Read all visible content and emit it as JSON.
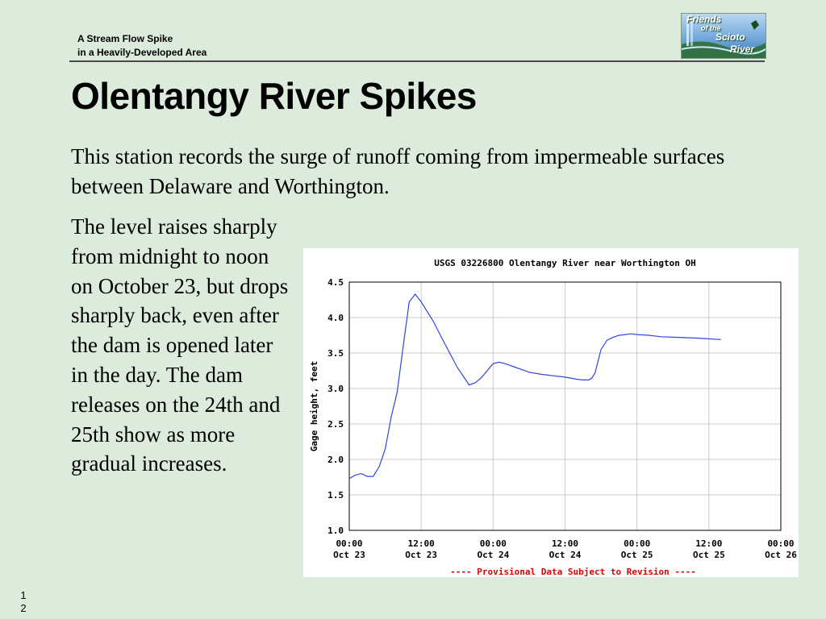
{
  "header": {
    "line1": "A Stream Flow Spike",
    "line2": "in a Heavily-Developed Area"
  },
  "logo": {
    "word1": "Friends",
    "word2": "of the",
    "word3": "Scioto",
    "word4": "River"
  },
  "title": "Olentangy River Spikes",
  "intro": "This station records the surge of runoff coming from impermeable surfaces between Delaware and Worthington.",
  "body": "The level raises sharply from midnight to noon on October 23, but drops sharply back, even after the dam is opened later in the day.  The dam releases on the 24th and 25th show as more gradual increases.",
  "slide_number": "1 2",
  "chart_data": {
    "type": "line",
    "title": "USGS 03226800 Olentangy River near Worthington OH",
    "ylabel": "Gage height, feet",
    "xlabel": "",
    "ylim": [
      1.0,
      4.5
    ],
    "yticks": [
      "1.0",
      "1.5",
      "2.0",
      "2.5",
      "3.0",
      "3.5",
      "4.0",
      "4.5"
    ],
    "xticks": [
      {
        "h": 0,
        "time": "00:00",
        "date": "Oct 23"
      },
      {
        "h": 12,
        "time": "12:00",
        "date": "Oct 23"
      },
      {
        "h": 24,
        "time": "00:00",
        "date": "Oct 24"
      },
      {
        "h": 36,
        "time": "12:00",
        "date": "Oct 24"
      },
      {
        "h": 48,
        "time": "00:00",
        "date": "Oct 25"
      },
      {
        "h": 60,
        "time": "12:00",
        "date": "Oct 25"
      },
      {
        "h": 72,
        "time": "00:00",
        "date": "Oct 26"
      }
    ],
    "grid": true,
    "footer": "---- Provisional Data Subject to Revision ----",
    "colors": {
      "line": "#3344dd",
      "footer": "#dd0000",
      "grid": "#cccccc"
    },
    "series": [
      {
        "x": [
          0,
          1,
          2,
          3,
          4,
          5,
          6,
          7,
          8,
          9,
          10,
          11,
          12,
          14,
          16,
          18,
          20,
          21,
          22,
          23,
          24,
          25,
          26,
          27,
          28,
          29,
          30,
          32,
          34,
          36,
          38,
          39,
          40,
          40.5,
          41,
          42,
          43,
          44,
          45,
          46,
          47,
          48,
          50,
          52,
          55,
          58,
          60,
          62
        ],
        "y": [
          1.73,
          1.78,
          1.8,
          1.76,
          1.76,
          1.9,
          2.15,
          2.6,
          2.95,
          3.6,
          4.22,
          4.33,
          4.22,
          3.95,
          3.62,
          3.3,
          3.05,
          3.08,
          3.15,
          3.25,
          3.35,
          3.37,
          3.35,
          3.32,
          3.29,
          3.26,
          3.23,
          3.2,
          3.18,
          3.16,
          3.13,
          3.12,
          3.12,
          3.15,
          3.22,
          3.55,
          3.68,
          3.72,
          3.75,
          3.76,
          3.77,
          3.76,
          3.75,
          3.73,
          3.72,
          3.71,
          3.7,
          3.69
        ]
      }
    ]
  }
}
